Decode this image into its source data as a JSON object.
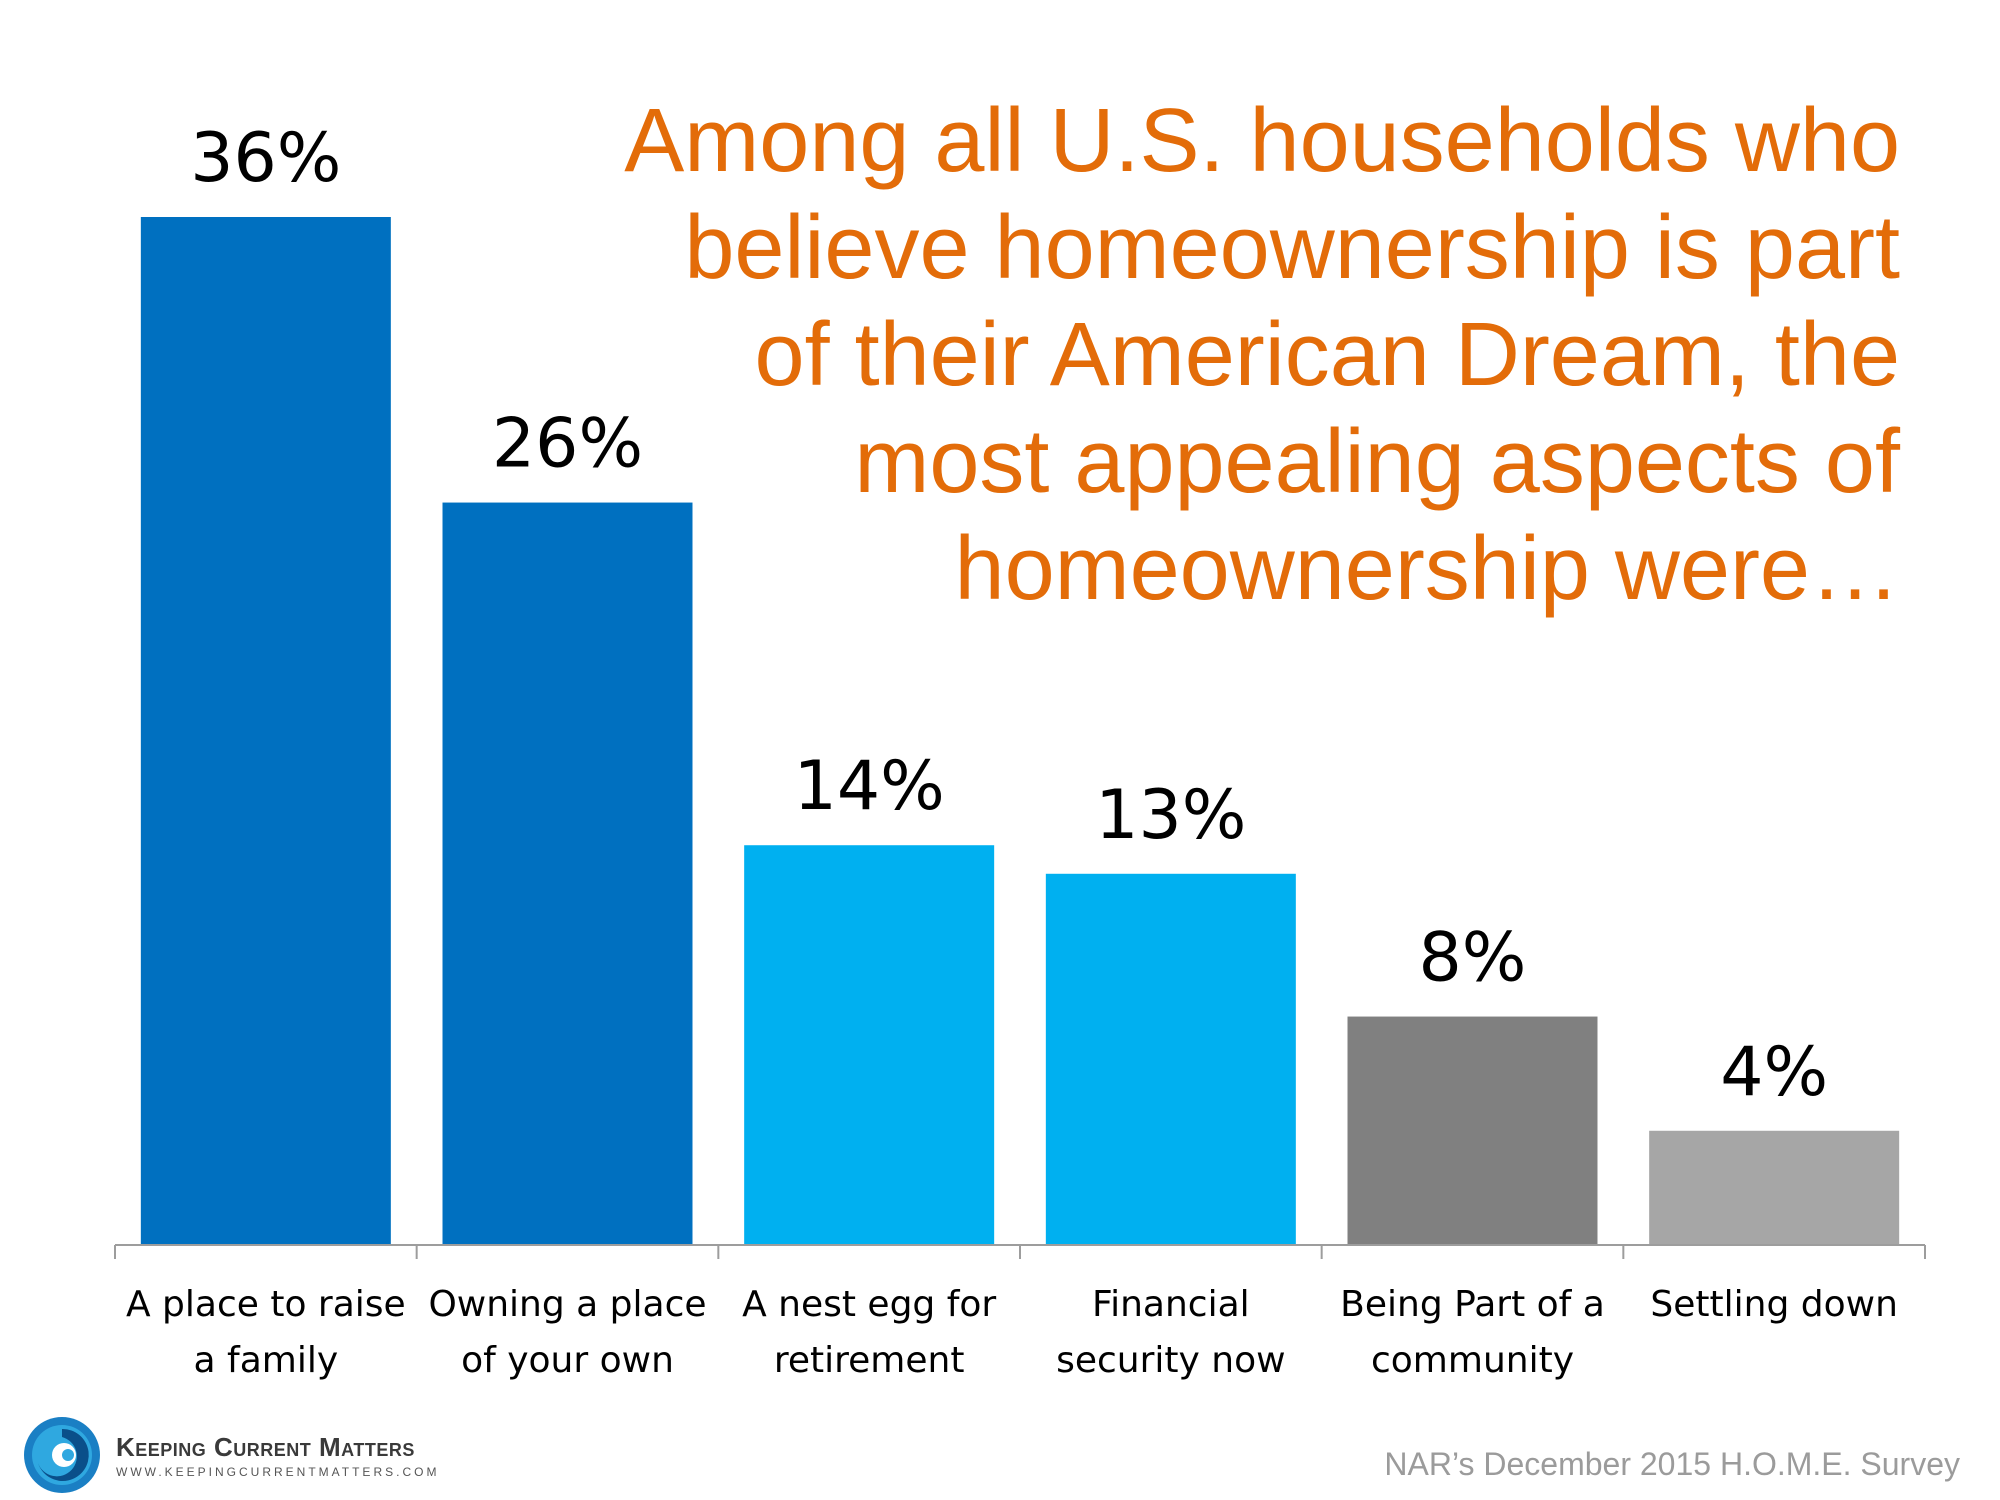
{
  "title_lines": [
    "Among all U.S. households who",
    "believe homeownership is part",
    "of their American Dream, the",
    "most appealing aspects of",
    "homeownership were…"
  ],
  "chart_data": {
    "type": "bar",
    "categories": [
      [
        "A place to raise",
        "a family"
      ],
      [
        "Owning a place",
        "of your own"
      ],
      [
        "A nest egg for",
        "retirement"
      ],
      [
        "Financial",
        "security now"
      ],
      [
        "Being Part of a",
        "community"
      ],
      [
        "Settling down"
      ]
    ],
    "values": [
      36,
      26,
      14,
      13,
      8,
      4
    ],
    "value_labels": [
      "36%",
      "26%",
      "14%",
      "13%",
      "8%",
      "4%"
    ],
    "bar_colors": [
      "#0070c0",
      "#0070c0",
      "#00b0f0",
      "#00b0f0",
      "#808080",
      "#a6a6a6"
    ],
    "ylim": [
      0,
      40
    ],
    "grid": false,
    "legend": "none"
  },
  "logo": {
    "name": "Keeping Current Matters",
    "url": "WWW.KEEPINGCURRENTMATTERS.COM"
  },
  "source": "NAR’s December 2015 H.O.M.E. Survey"
}
